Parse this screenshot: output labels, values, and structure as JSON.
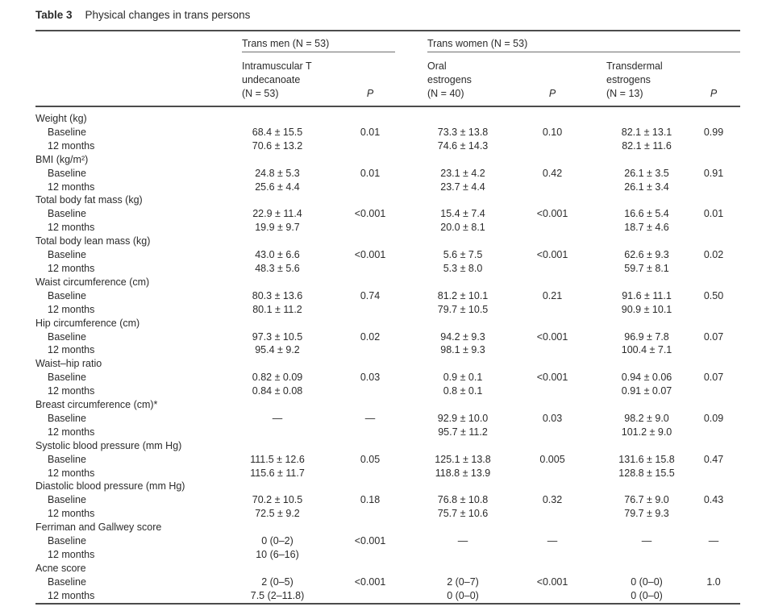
{
  "page": {
    "background": "#ffffff",
    "text_color": "#2b2b2b",
    "rule_color": "#4c4c4c"
  },
  "table": {
    "label": "Table 3",
    "title": "Physical changes in trans persons",
    "groups": [
      {
        "label": "Trans men (N = 53)"
      },
      {
        "label": "Trans women (N = 53)"
      }
    ],
    "columns": [
      {
        "label": "Intramuscular T\nundecanoate\n(N = 53)",
        "type": "value"
      },
      {
        "label": "P",
        "type": "p"
      },
      {
        "label": "Oral\nestrogens\n(N = 40)",
        "type": "value"
      },
      {
        "label": "P",
        "type": "p"
      },
      {
        "label": "Transdermal\nestrogens\n(N = 13)",
        "type": "value"
      },
      {
        "label": "P",
        "type": "p"
      }
    ],
    "sections": [
      {
        "name": "Weight (kg)",
        "rows": [
          {
            "label": "Baseline",
            "cells": [
              "68.4 ± 15.5",
              "0.01",
              "73.3 ± 13.8",
              "0.10",
              "82.1 ± 13.1",
              "0.99"
            ]
          },
          {
            "label": "12 months",
            "cells": [
              "70.6 ± 13.2",
              "",
              "74.6 ± 14.3",
              "",
              "82.1 ± 11.6",
              ""
            ]
          }
        ]
      },
      {
        "name": "BMI (kg/m²)",
        "rows": [
          {
            "label": "Baseline",
            "cells": [
              "24.8 ± 5.3",
              "0.01",
              "23.1 ± 4.2",
              "0.42",
              "26.1 ± 3.5",
              "0.91"
            ]
          },
          {
            "label": "12 months",
            "cells": [
              "25.6 ± 4.4",
              "",
              "23.7 ± 4.4",
              "",
              "26.1 ± 3.4",
              ""
            ]
          }
        ]
      },
      {
        "name": "Total body fat mass (kg)",
        "rows": [
          {
            "label": "Baseline",
            "cells": [
              "22.9 ± 11.4",
              "<0.001",
              "15.4 ± 7.4",
              "<0.001",
              "16.6 ± 5.4",
              "0.01"
            ]
          },
          {
            "label": "12 months",
            "cells": [
              "19.9 ± 9.7",
              "",
              "20.0 ± 8.1",
              "",
              "18.7 ± 4.6",
              ""
            ]
          }
        ]
      },
      {
        "name": "Total body lean mass (kg)",
        "rows": [
          {
            "label": "Baseline",
            "cells": [
              "43.0 ± 6.6",
              "<0.001",
              "5.6 ± 7.5",
              "<0.001",
              "62.6 ± 9.3",
              "0.02"
            ]
          },
          {
            "label": "12 months",
            "cells": [
              "48.3 ± 5.6",
              "",
              "5.3 ± 8.0",
              "",
              "59.7 ± 8.1",
              ""
            ]
          }
        ]
      },
      {
        "name": "Waist circumference (cm)",
        "rows": [
          {
            "label": "Baseline",
            "cells": [
              "80.3 ± 13.6",
              "0.74",
              "81.2 ± 10.1",
              "0.21",
              "91.6 ± 11.1",
              "0.50"
            ]
          },
          {
            "label": "12 months",
            "cells": [
              "80.1 ± 11.2",
              "",
              "79.7 ± 10.5",
              "",
              "90.9 ± 10.1",
              ""
            ]
          }
        ]
      },
      {
        "name": "Hip circumference (cm)",
        "rows": [
          {
            "label": "Baseline",
            "cells": [
              "97.3 ± 10.5",
              "0.02",
              "94.2 ± 9.3",
              "<0.001",
              "96.9 ± 7.8",
              "0.07"
            ]
          },
          {
            "label": "12 months",
            "cells": [
              "95.4 ± 9.2",
              "",
              "98.1 ± 9.3",
              "",
              "100.4 ± 7.1",
              ""
            ]
          }
        ]
      },
      {
        "name": "Waist–hip ratio",
        "rows": [
          {
            "label": "Baseline",
            "cells": [
              "0.82 ± 0.09",
              "0.03",
              "0.9 ± 0.1",
              "<0.001",
              "0.94 ± 0.06",
              "0.07"
            ]
          },
          {
            "label": "12 months",
            "cells": [
              "0.84 ± 0.08",
              "",
              "0.8 ± 0.1",
              "",
              "0.91 ± 0.07",
              ""
            ]
          }
        ]
      },
      {
        "name": "Breast circumference (cm)*",
        "rows": [
          {
            "label": "Baseline",
            "cells": [
              "—",
              "—",
              "92.9 ± 10.0",
              "0.03",
              "98.2 ± 9.0",
              "0.09"
            ]
          },
          {
            "label": "12 months",
            "cells": [
              "",
              "",
              "95.7 ± 11.2",
              "",
              "101.2 ± 9.0",
              ""
            ]
          }
        ]
      },
      {
        "name": "Systolic blood pressure (mm Hg)",
        "rows": [
          {
            "label": "Baseline",
            "cells": [
              "111.5 ± 12.6",
              "0.05",
              "125.1 ± 13.8",
              "0.005",
              "131.6 ± 15.8",
              "0.47"
            ]
          },
          {
            "label": "12 months",
            "cells": [
              "115.6 ± 11.7",
              "",
              "118.8 ± 13.9",
              "",
              "128.8 ± 15.5",
              ""
            ]
          }
        ]
      },
      {
        "name": "Diastolic blood pressure (mm Hg)",
        "rows": [
          {
            "label": "Baseline",
            "cells": [
              "70.2 ± 10.5",
              "0.18",
              "76.8 ± 10.8",
              "0.32",
              "76.7 ± 9.0",
              "0.43"
            ]
          },
          {
            "label": "12 months",
            "cells": [
              "72.5 ± 9.2",
              "",
              "75.7 ± 10.6",
              "",
              "79.7 ± 9.3",
              ""
            ]
          }
        ]
      },
      {
        "name": "Ferriman and Gallwey score",
        "rows": [
          {
            "label": "Baseline",
            "cells": [
              "0 (0–2)",
              "<0.001",
              "—",
              "—",
              "—",
              "—"
            ]
          },
          {
            "label": "12 months",
            "cells": [
              "10 (6–16)",
              "",
              "",
              "",
              "",
              ""
            ]
          }
        ]
      },
      {
        "name": "Acne score",
        "rows": [
          {
            "label": "Baseline",
            "cells": [
              "2 (0–5)",
              "<0.001",
              "2 (0–7)",
              "<0.001",
              "0 (0–0)",
              "1.0"
            ]
          },
          {
            "label": "12 months",
            "cells": [
              "7.5 (2–11.8)",
              "",
              "0 (0–0)",
              "",
              "0 (0–0)",
              ""
            ]
          }
        ]
      }
    ]
  }
}
